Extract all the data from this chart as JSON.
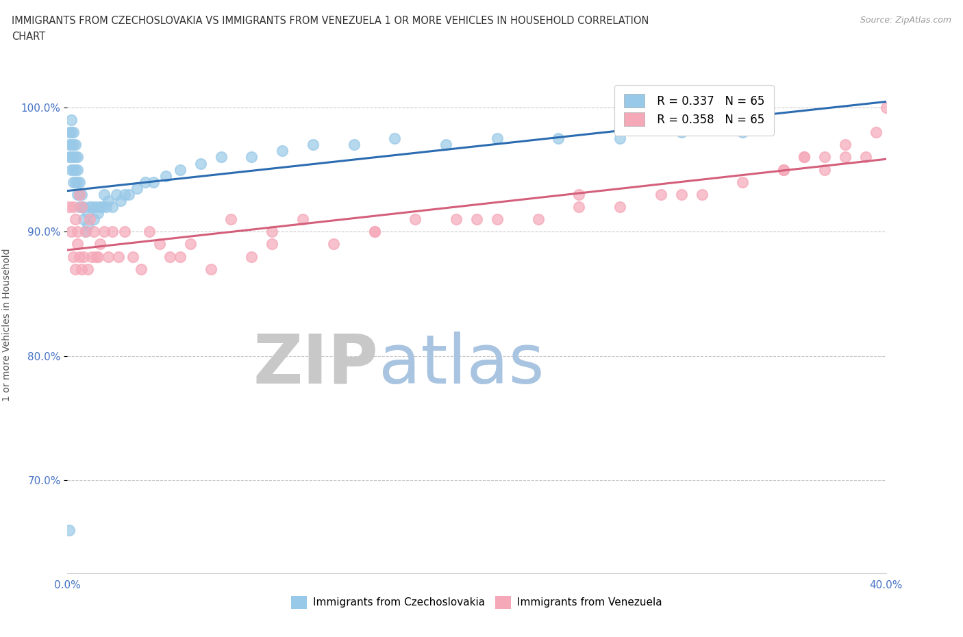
{
  "title": "IMMIGRANTS FROM CZECHOSLOVAKIA VS IMMIGRANTS FROM VENEZUELA 1 OR MORE VEHICLES IN HOUSEHOLD CORRELATION\nCHART",
  "source_text": "Source: ZipAtlas.com",
  "ylabel_text": "1 or more Vehicles in Household",
  "xlim": [
    0.0,
    0.4
  ],
  "ylim": [
    0.625,
    1.025
  ],
  "yticks": [
    0.7,
    0.8,
    0.9,
    1.0
  ],
  "ytick_labels": [
    "70.0%",
    "80.0%",
    "90.0%",
    "100.0%"
  ],
  "xticks": [
    0.0,
    0.05,
    0.1,
    0.15,
    0.2,
    0.25,
    0.3,
    0.35,
    0.4
  ],
  "xtick_labels": [
    "0.0%",
    "",
    "",
    "",
    "",
    "",
    "",
    "",
    "40.0%"
  ],
  "color_czech": "#99c9e8",
  "color_venezuela": "#f5a8b8",
  "trend_color_czech": "#2b6cb0",
  "trend_color_venezuela": "#d45f7a",
  "R_czech": 0.337,
  "N_czech": 65,
  "R_venezuela": 0.358,
  "N_venezuela": 65,
  "watermark_ZIP": "ZIP",
  "watermark_atlas": "atlas",
  "watermark_color_ZIP": "#c8c8c8",
  "watermark_color_atlas": "#a8c4e0",
  "legend_labels": [
    "Immigrants from Czechoslovakia",
    "Immigrants from Venezuela"
  ],
  "czech_x": [
    0.001,
    0.001,
    0.001,
    0.002,
    0.002,
    0.002,
    0.002,
    0.002,
    0.003,
    0.003,
    0.003,
    0.003,
    0.003,
    0.004,
    0.004,
    0.004,
    0.004,
    0.005,
    0.005,
    0.005,
    0.005,
    0.006,
    0.006,
    0.006,
    0.007,
    0.007,
    0.008,
    0.008,
    0.009,
    0.01,
    0.01,
    0.011,
    0.012,
    0.013,
    0.014,
    0.015,
    0.016,
    0.017,
    0.018,
    0.019,
    0.02,
    0.022,
    0.024,
    0.026,
    0.028,
    0.03,
    0.034,
    0.038,
    0.042,
    0.048,
    0.055,
    0.065,
    0.075,
    0.09,
    0.105,
    0.12,
    0.14,
    0.16,
    0.185,
    0.21,
    0.24,
    0.27,
    0.3,
    0.33,
    0.001
  ],
  "czech_y": [
    0.96,
    0.97,
    0.98,
    0.95,
    0.96,
    0.97,
    0.98,
    0.99,
    0.94,
    0.95,
    0.96,
    0.97,
    0.98,
    0.94,
    0.95,
    0.96,
    0.97,
    0.93,
    0.94,
    0.95,
    0.96,
    0.92,
    0.93,
    0.94,
    0.92,
    0.93,
    0.91,
    0.92,
    0.9,
    0.905,
    0.915,
    0.92,
    0.92,
    0.91,
    0.92,
    0.915,
    0.92,
    0.92,
    0.93,
    0.92,
    0.925,
    0.92,
    0.93,
    0.925,
    0.93,
    0.93,
    0.935,
    0.94,
    0.94,
    0.945,
    0.95,
    0.955,
    0.96,
    0.96,
    0.965,
    0.97,
    0.97,
    0.975,
    0.97,
    0.975,
    0.975,
    0.975,
    0.98,
    0.98,
    0.66
  ],
  "venezuela_x": [
    0.001,
    0.002,
    0.003,
    0.003,
    0.004,
    0.004,
    0.005,
    0.005,
    0.006,
    0.006,
    0.007,
    0.007,
    0.008,
    0.009,
    0.01,
    0.011,
    0.012,
    0.013,
    0.014,
    0.015,
    0.016,
    0.018,
    0.02,
    0.022,
    0.025,
    0.028,
    0.032,
    0.036,
    0.04,
    0.045,
    0.05,
    0.055,
    0.06,
    0.07,
    0.08,
    0.09,
    0.1,
    0.115,
    0.13,
    0.15,
    0.17,
    0.19,
    0.21,
    0.23,
    0.25,
    0.27,
    0.29,
    0.31,
    0.33,
    0.35,
    0.36,
    0.37,
    0.38,
    0.39,
    0.395,
    0.4,
    0.37,
    0.38,
    0.35,
    0.36,
    0.1,
    0.15,
    0.2,
    0.25,
    0.3
  ],
  "venezuela_y": [
    0.92,
    0.9,
    0.88,
    0.92,
    0.87,
    0.91,
    0.89,
    0.9,
    0.88,
    0.93,
    0.87,
    0.92,
    0.88,
    0.9,
    0.87,
    0.91,
    0.88,
    0.9,
    0.88,
    0.88,
    0.89,
    0.9,
    0.88,
    0.9,
    0.88,
    0.9,
    0.88,
    0.87,
    0.9,
    0.89,
    0.88,
    0.88,
    0.89,
    0.87,
    0.91,
    0.88,
    0.9,
    0.91,
    0.89,
    0.9,
    0.91,
    0.91,
    0.91,
    0.91,
    0.93,
    0.92,
    0.93,
    0.93,
    0.94,
    0.95,
    0.96,
    0.95,
    0.97,
    0.96,
    0.98,
    1.0,
    0.96,
    0.96,
    0.95,
    0.96,
    0.89,
    0.9,
    0.91,
    0.92,
    0.93
  ]
}
